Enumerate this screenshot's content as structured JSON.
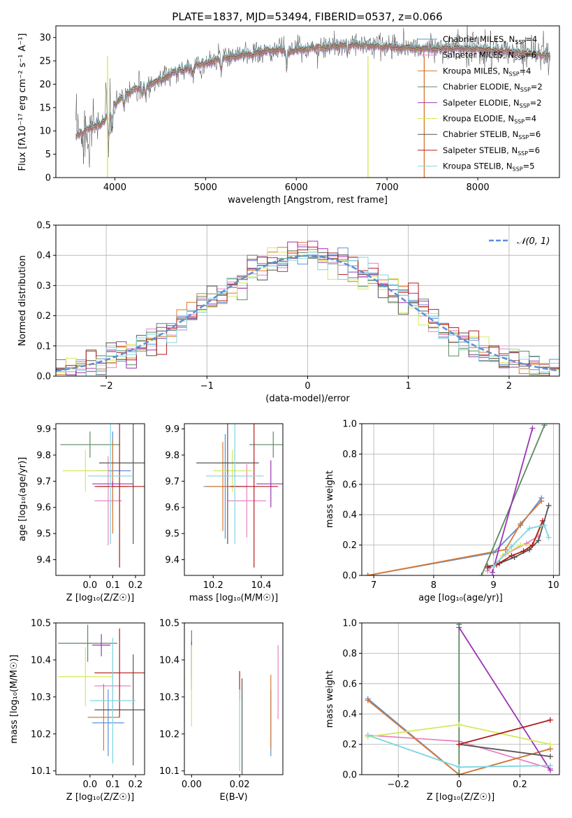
{
  "figure_title": "PLATE=1837, MJD=53494, FIBERID=0537, z=0.066",
  "models": [
    {
      "name": "Chabrier MILES",
      "nssp": "4",
      "color": "#5b8fd9"
    },
    {
      "name": "Salpeter MILES",
      "nssp": "6",
      "color": "#e884c3"
    },
    {
      "name": "Kroupa MILES",
      "nssp": "4",
      "color": "#d9782f"
    },
    {
      "name": "Chabrier ELODIE",
      "nssp": "2",
      "color": "#5a8a5e"
    },
    {
      "name": "Salpeter ELODIE",
      "nssp": "2",
      "color": "#9a35b5"
    },
    {
      "name": "Kroupa ELODIE",
      "nssp": "4",
      "color": "#d6e85a"
    },
    {
      "name": "Chabrier STELIB",
      "nssp": "6",
      "color": "#555555"
    },
    {
      "name": "Salpeter STELIB",
      "nssp": "6",
      "color": "#b31b1b"
    },
    {
      "name": "Kroupa STELIB",
      "nssp": "5",
      "color": "#7fd6e0"
    }
  ],
  "chart_data": [
    {
      "id": "spectrum",
      "type": "line",
      "xlabel": "wavelength [Angstrom, rest frame]",
      "ylabel": "Flux [fλ10⁻¹⁷ erg cm⁻² s⁻¹ A⁻¹]",
      "xlim": [
        3350,
        8900
      ],
      "ylim": [
        0,
        32.5
      ],
      "xticks": [
        4000,
        5000,
        6000,
        7000,
        8000
      ],
      "yticks": [
        0,
        5,
        10,
        15,
        20,
        25,
        30
      ],
      "continuum": {
        "x": [
          3550,
          3700,
          3850,
          3950,
          4050,
          4200,
          4400,
          4600,
          4800,
          5000,
          5200,
          5400,
          5600,
          5800,
          6000,
          6200,
          6400,
          6600,
          6800,
          7000,
          7200,
          7400,
          7600,
          7800,
          8000,
          8200,
          8400,
          8600,
          8800
        ],
        "y": [
          8.5,
          10.5,
          11.5,
          14,
          17,
          19,
          20,
          22,
          23.5,
          24.5,
          25.5,
          26.2,
          26.8,
          27.3,
          27.4,
          27.8,
          28.1,
          28.5,
          28.3,
          28.1,
          27.9,
          27.7,
          27.5,
          27.6,
          27.6,
          27.2,
          26.8,
          26.6,
          26.0
        ]
      },
      "legend_position": "right"
    },
    {
      "id": "residuals",
      "type": "histogram",
      "xlabel": "(data-model)/error",
      "ylabel": "Normed distribution",
      "xlim": [
        -2.5,
        2.5
      ],
      "ylim": [
        0,
        0.5
      ],
      "xticks": [
        -2,
        -1,
        0,
        1,
        2
      ],
      "yticks": [
        0.0,
        0.1,
        0.2,
        0.3,
        0.4,
        0.5
      ],
      "grid": true,
      "bin_width": 0.1,
      "reference_label": "𝒩(0, 1)",
      "reference_color": "#5b8fd9",
      "legend_position": "upper right"
    },
    {
      "id": "age_vs_Z",
      "type": "errorbar",
      "xlabel": "Z [log₁₀(Z/Z☉)]",
      "ylabel": "age  [log₁₀(age/yr)]",
      "xlim": [
        -0.15,
        0.24
      ],
      "ylim": [
        9.34,
        9.92
      ],
      "xticks": [
        0.0,
        0.1,
        0.2
      ],
      "yticks": [
        9.4,
        9.5,
        9.6,
        9.7,
        9.8,
        9.9
      ],
      "points": [
        {
          "x": 0.1,
          "y": 9.74,
          "xerr": 0.08,
          "yerr": 0.15
        },
        {
          "x": 0.08,
          "y": 9.625,
          "xerr": 0.06,
          "yerr": 0.17
        },
        {
          "x": 0.1,
          "y": 9.68,
          "xerr": 0.07,
          "yerr": 0.18
        },
        {
          "x": 0.0,
          "y": 9.84,
          "xerr": 0.13,
          "yerr": 0.05
        },
        {
          "x": 0.1,
          "y": 9.69,
          "xerr": 0.09,
          "yerr": 0.01
        },
        {
          "x": -0.02,
          "y": 9.74,
          "xerr": 0.1,
          "yerr": 0.08
        },
        {
          "x": 0.19,
          "y": 9.77,
          "xerr": 0.15,
          "yerr": 0.31
        },
        {
          "x": 0.13,
          "y": 9.68,
          "xerr": 0.11,
          "yerr": 0.31
        },
        {
          "x": 0.09,
          "y": 9.72,
          "xerr": 0.1,
          "yerr": 0.26
        }
      ]
    },
    {
      "id": "age_vs_mass",
      "type": "errorbar",
      "xlabel": "mass [log₁₀(M/M☉)]",
      "ylabel": "",
      "xlim": [
        10.08,
        10.49
      ],
      "ylim": [
        9.34,
        9.92
      ],
      "xticks": [
        10.2,
        10.4
      ],
      "yticks": [
        9.4,
        9.5,
        9.6,
        9.7,
        9.8,
        9.9
      ],
      "points": [
        {
          "x": 10.25,
          "y": 9.68,
          "xerr": 0.09,
          "yerr": 0.2
        },
        {
          "x": 10.34,
          "y": 9.625,
          "xerr": 0.08,
          "yerr": 0.14
        },
        {
          "x": 10.24,
          "y": 9.68,
          "xerr": 0.07,
          "yerr": 0.17
        },
        {
          "x": 10.45,
          "y": 9.84,
          "xerr": 0.1,
          "yerr": 0.05
        },
        {
          "x": 10.44,
          "y": 9.69,
          "xerr": 0.06,
          "yerr": 0.09
        },
        {
          "x": 10.28,
          "y": 9.74,
          "xerr": 0.08,
          "yerr": 0.08
        },
        {
          "x": 10.26,
          "y": 9.77,
          "xerr": 0.13,
          "yerr": 0.31
        },
        {
          "x": 10.37,
          "y": 9.68,
          "xerr": 0.1,
          "yerr": 0.31
        },
        {
          "x": 10.29,
          "y": 9.72,
          "xerr": 0.12,
          "yerr": 0.26
        }
      ]
    },
    {
      "id": "massweight_vs_age",
      "type": "line",
      "xlabel": "age  [log₁₀(age/yr)]",
      "ylabel": "mass weight",
      "xlim": [
        6.8,
        10.1
      ],
      "ylim": [
        0.0,
        1.0
      ],
      "xticks": [
        7,
        8,
        9,
        10
      ],
      "yticks": [
        0.0,
        0.2,
        0.4,
        0.6,
        0.8,
        1.0
      ],
      "grid": true,
      "series": [
        {
          "x": [
            6.9,
            9.0,
            9.45,
            9.8
          ],
          "y": [
            0.0,
            0.15,
            0.33,
            0.51
          ]
        },
        {
          "x": [
            8.9,
            9.2,
            9.55,
            9.75
          ],
          "y": [
            0.03,
            0.14,
            0.21,
            0.26
          ]
        },
        {
          "x": [
            6.9,
            9.2,
            9.45,
            9.8
          ],
          "y": [
            0.0,
            0.17,
            0.34,
            0.49
          ]
        },
        {
          "x": [
            8.8,
            9.85
          ],
          "y": [
            0.0,
            0.99
          ]
        },
        {
          "x": [
            8.98,
            9.65
          ],
          "y": [
            0.02,
            0.97
          ]
        },
        {
          "x": [
            9.15,
            9.45,
            9.65,
            9.8
          ],
          "y": [
            0.13,
            0.2,
            0.2,
            0.33
          ]
        },
        {
          "x": [
            8.9,
            9.1,
            9.35,
            9.6,
            9.75,
            9.92
          ],
          "y": [
            0.05,
            0.08,
            0.12,
            0.17,
            0.23,
            0.46
          ]
        },
        {
          "x": [
            8.9,
            9.05,
            9.3,
            9.5,
            9.65,
            9.82
          ],
          "y": [
            0.06,
            0.07,
            0.13,
            0.16,
            0.2,
            0.36
          ]
        },
        {
          "x": [
            9.0,
            9.3,
            9.6,
            9.85,
            9.92
          ],
          "y": [
            0.06,
            0.19,
            0.31,
            0.33,
            0.25
          ]
        }
      ]
    },
    {
      "id": "mass_vs_Z",
      "type": "errorbar",
      "xlabel": "Z [log₁₀(Z/Z☉)]",
      "ylabel": "mass [log₁₀(M/M☉)]",
      "xlim": [
        -0.15,
        0.24
      ],
      "ylim": [
        10.09,
        10.5
      ],
      "xticks": [
        0.0,
        0.1,
        0.2
      ],
      "yticks": [
        10.1,
        10.2,
        10.3,
        10.4,
        10.5
      ],
      "points": [
        {
          "x": 0.08,
          "y": 10.23,
          "xerr": 0.07,
          "yerr": 0.09
        },
        {
          "x": 0.1,
          "y": 10.33,
          "xerr": 0.08,
          "yerr": 0.08
        },
        {
          "x": 0.06,
          "y": 10.245,
          "xerr": 0.07,
          "yerr": 0.09
        },
        {
          "x": -0.01,
          "y": 10.445,
          "xerr": 0.13,
          "yerr": 0.05
        },
        {
          "x": 0.05,
          "y": 10.44,
          "xerr": 0.04,
          "yerr": 0.03
        },
        {
          "x": -0.02,
          "y": 10.355,
          "xerr": 0.12,
          "yerr": 0.08
        },
        {
          "x": 0.19,
          "y": 10.265,
          "xerr": 0.17,
          "yerr": 0.15
        },
        {
          "x": 0.13,
          "y": 10.365,
          "xerr": 0.11,
          "yerr": 0.12
        },
        {
          "x": 0.1,
          "y": 10.29,
          "xerr": 0.1,
          "yerr": 0.17
        }
      ]
    },
    {
      "id": "mass_vs_EBV",
      "type": "errorbar",
      "xlabel": "E(B-V)",
      "ylabel": "",
      "xlim": [
        -0.003,
        0.038
      ],
      "ylim": [
        10.09,
        10.5
      ],
      "xticks": [
        0.0,
        0.02
      ],
      "yticks": [
        10.1,
        10.2,
        10.3,
        10.4,
        10.5
      ],
      "points": [
        {
          "x": 0.033,
          "y": 10.23,
          "xerr": 0.0,
          "yerr": 0.09
        },
        {
          "x": 0.036,
          "y": 10.34,
          "xerr": 0.0,
          "yerr": 0.1
        },
        {
          "x": 0.033,
          "y": 10.26,
          "xerr": 0.0,
          "yerr": 0.1
        },
        {
          "x": 0.0,
          "y": 10.4,
          "xerr": 0.0,
          "yerr": 0.08
        },
        {
          "x": 0.0,
          "y": 10.4,
          "xerr": 0.0,
          "yerr": 0.05
        },
        {
          "x": 0.0,
          "y": 10.33,
          "xerr": 0.0,
          "yerr": 0.11
        },
        {
          "x": 0.021,
          "y": 10.2,
          "xerr": 0.0,
          "yerr": 0.15
        },
        {
          "x": 0.02,
          "y": 10.33,
          "xerr": 0.0,
          "yerr": 0.04
        },
        {
          "x": 0.02,
          "y": 10.21,
          "xerr": 0.0,
          "yerr": 0.11
        }
      ]
    },
    {
      "id": "massweight_vs_Z",
      "type": "line",
      "xlabel": "Z [log₁₀(Z/Z☉)]",
      "ylabel": "mass weight",
      "xlim": [
        -0.32,
        0.33
      ],
      "ylim": [
        0.0,
        1.0
      ],
      "xticks": [
        -0.2,
        0.0,
        0.2
      ],
      "yticks": [
        0.0,
        0.2,
        0.4,
        0.6,
        0.8,
        1.0
      ],
      "grid": true,
      "series": [
        {
          "x": [
            -0.3,
            0.0,
            0.3
          ],
          "y": [
            0.5,
            0.0,
            0.17
          ]
        },
        {
          "x": [
            -0.3,
            0.0,
            0.3
          ],
          "y": [
            0.26,
            0.22,
            0.04
          ]
        },
        {
          "x": [
            -0.3,
            0.0,
            0.3
          ],
          "y": [
            0.49,
            0.0,
            0.17
          ]
        },
        {
          "x": [
            0.0,
            0.0
          ],
          "y": [
            0.0,
            0.99
          ]
        },
        {
          "x": [
            0.0,
            0.3
          ],
          "y": [
            0.97,
            0.03
          ]
        },
        {
          "x": [
            -0.3,
            0.0,
            0.3
          ],
          "y": [
            0.25,
            0.33,
            0.2
          ]
        },
        {
          "x": [
            0.0,
            0.3
          ],
          "y": [
            0.2,
            0.12
          ]
        },
        {
          "x": [
            0.0,
            0.3
          ],
          "y": [
            0.2,
            0.36
          ]
        },
        {
          "x": [
            -0.3,
            0.0,
            0.3
          ],
          "y": [
            0.26,
            0.05,
            0.06
          ]
        }
      ]
    }
  ]
}
